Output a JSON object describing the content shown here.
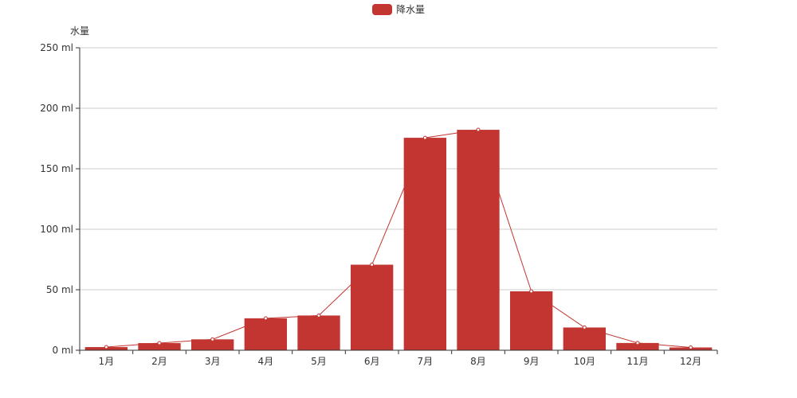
{
  "chart_data": {
    "type": "bar",
    "legend": {
      "position": "top-center",
      "entries": [
        "降水量"
      ]
    },
    "color": "#c23531",
    "categories": [
      "1月",
      "2月",
      "3月",
      "4月",
      "5月",
      "6月",
      "7月",
      "8月",
      "9月",
      "10月",
      "11月",
      "12月"
    ],
    "series": [
      {
        "name": "降水量",
        "type": "bar",
        "values": [
          2.6,
          5.9,
          9.0,
          26.4,
          28.7,
          70.7,
          175.6,
          182.2,
          48.7,
          18.8,
          6.0,
          2.3
        ]
      },
      {
        "name": "降水量",
        "type": "line",
        "values": [
          2.6,
          5.9,
          9.0,
          26.4,
          28.7,
          70.7,
          175.6,
          182.2,
          48.7,
          18.8,
          6.0,
          2.3
        ]
      }
    ],
    "ylabel": "水量",
    "yunit": "ml",
    "ylim": [
      0,
      250
    ],
    "yticks": [
      0,
      50,
      100,
      150,
      200,
      250
    ],
    "ytick_labels": [
      "0 ml",
      "50 ml",
      "100 ml",
      "150 ml",
      "200 ml",
      "250 ml"
    ],
    "grid": true
  }
}
